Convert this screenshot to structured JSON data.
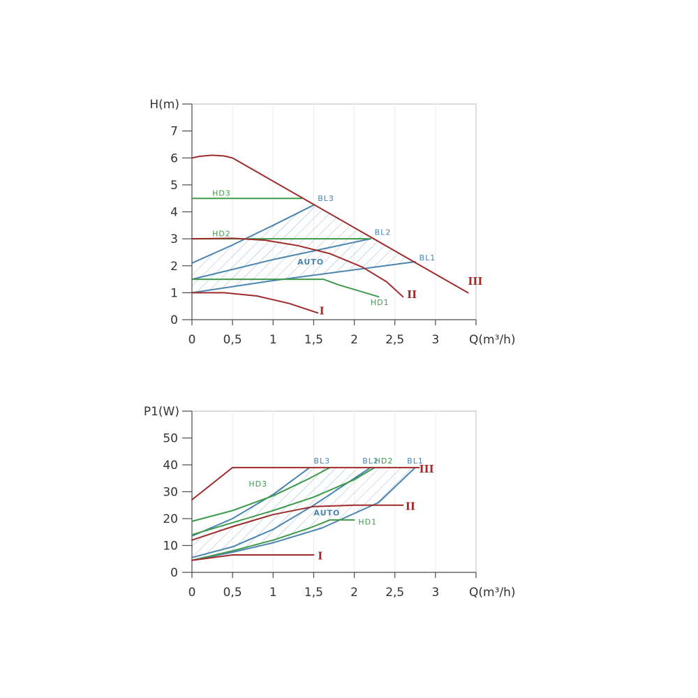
{
  "colors": {
    "red": "#9e2a2a",
    "blue": "#4a84b0",
    "green": "#3e9a4a",
    "hatch": "#8fb0cc"
  },
  "chart_data": [
    {
      "type": "line",
      "xlabel": "Q(m³/h)",
      "ylabel": "H(m)",
      "xlim": [
        0,
        3.5
      ],
      "ylim": [
        0,
        8
      ],
      "x_ticks": [
        {
          "v": 0,
          "label": "0"
        },
        {
          "v": 0.5,
          "label": "0,5"
        },
        {
          "v": 1,
          "label": "1"
        },
        {
          "v": 1.5,
          "label": "1,5"
        },
        {
          "v": 2,
          "label": "2"
        },
        {
          "v": 2.5,
          "label": "2,5"
        },
        {
          "v": 3,
          "label": "3"
        }
      ],
      "y_ticks": [
        {
          "v": 0,
          "label": "0"
        },
        {
          "v": 1,
          "label": "1"
        },
        {
          "v": 2,
          "label": "2"
        },
        {
          "v": 3,
          "label": "3"
        },
        {
          "v": 4,
          "label": "4"
        },
        {
          "v": 5,
          "label": "5"
        },
        {
          "v": 6,
          "label": "6"
        },
        {
          "v": 7,
          "label": "7"
        }
      ],
      "auto_region": {
        "label": "AUTO",
        "pos": [
          1.3,
          2.05
        ],
        "polygon": [
          [
            0,
            1.5
          ],
          [
            0,
            2.1
          ],
          [
            1.5,
            4.25
          ],
          [
            2.2,
            3.0
          ],
          [
            2.75,
            2.15
          ],
          [
            0,
            1.0
          ]
        ]
      },
      "series": [
        {
          "name": "III",
          "color": "red",
          "points": [
            [
              0,
              6.0
            ],
            [
              0.1,
              6.06
            ],
            [
              0.25,
              6.1
            ],
            [
              0.4,
              6.07
            ],
            [
              0.5,
              6.0
            ],
            [
              3.4,
              1.0
            ]
          ],
          "label_pos": [
            3.4,
            1.3
          ]
        },
        {
          "name": "II",
          "color": "red",
          "points": [
            [
              0,
              3.0
            ],
            [
              0.5,
              3.02
            ],
            [
              0.9,
              2.95
            ],
            [
              1.3,
              2.75
            ],
            [
              1.7,
              2.45
            ],
            [
              2.1,
              1.95
            ],
            [
              2.4,
              1.4
            ],
            [
              2.6,
              0.85
            ]
          ],
          "label_pos": [
            2.65,
            0.8
          ]
        },
        {
          "name": "I",
          "color": "red",
          "points": [
            [
              0,
              1.0
            ],
            [
              0.4,
              1.0
            ],
            [
              0.8,
              0.88
            ],
            [
              1.2,
              0.6
            ],
            [
              1.55,
              0.25
            ]
          ],
          "label_pos": [
            1.57,
            0.2
          ]
        },
        {
          "name": "HD3",
          "color": "green",
          "points": [
            [
              0,
              4.5
            ],
            [
              1.35,
              4.5
            ]
          ],
          "label_pos": [
            0.25,
            4.6
          ]
        },
        {
          "name": "HD2",
          "color": "green",
          "points": [
            [
              0,
              3.0
            ],
            [
              2.2,
              3.0
            ]
          ],
          "label_pos": [
            0.25,
            3.1
          ]
        },
        {
          "name": "HD1",
          "color": "green",
          "points": [
            [
              0,
              1.5
            ],
            [
              1.62,
              1.5
            ],
            [
              1.8,
              1.3
            ],
            [
              2.3,
              0.85
            ]
          ],
          "label_pos": [
            2.2,
            0.55
          ]
        },
        {
          "name": "BL3",
          "color": "blue",
          "points": [
            [
              0,
              2.1
            ],
            [
              0.5,
              2.77
            ],
            [
              1.0,
              3.5
            ],
            [
              1.5,
              4.25
            ]
          ],
          "label_pos": [
            1.55,
            4.4
          ]
        },
        {
          "name": "BL2",
          "color": "blue",
          "points": [
            [
              0,
              1.5
            ],
            [
              1.0,
              2.23
            ],
            [
              2.2,
              3.0
            ]
          ],
          "label_pos": [
            2.25,
            3.15
          ]
        },
        {
          "name": "BL1",
          "color": "blue",
          "points": [
            [
              0,
              1.0
            ],
            [
              1.0,
              1.45
            ],
            [
              2.75,
              2.15
            ]
          ],
          "label_pos": [
            2.8,
            2.2
          ]
        }
      ]
    },
    {
      "type": "line",
      "xlabel": "Q(m³/h)",
      "ylabel": "P1(W)",
      "xlim": [
        0,
        3.5
      ],
      "ylim": [
        0,
        60
      ],
      "x_ticks": [
        {
          "v": 0,
          "label": "0"
        },
        {
          "v": 0.5,
          "label": "0,5"
        },
        {
          "v": 1,
          "label": "1"
        },
        {
          "v": 1.5,
          "label": "1,5"
        },
        {
          "v": 2,
          "label": "2"
        },
        {
          "v": 2.5,
          "label": "2,5"
        },
        {
          "v": 3,
          "label": "3"
        }
      ],
      "y_ticks": [
        {
          "v": 0,
          "label": "0"
        },
        {
          "v": 10,
          "label": "10"
        },
        {
          "v": 20,
          "label": "20"
        },
        {
          "v": 30,
          "label": "30"
        },
        {
          "v": 40,
          "label": "40"
        },
        {
          "v": 50,
          "label": "50"
        }
      ],
      "auto_region": {
        "label": "AUTO",
        "pos": [
          1.5,
          21.2
        ],
        "polygon": [
          [
            0,
            13
          ],
          [
            0.5,
            20
          ],
          [
            1.45,
            39
          ],
          [
            2.75,
            39
          ],
          [
            2.3,
            26
          ],
          [
            1.6,
            16
          ],
          [
            0.8,
            9
          ],
          [
            0,
            5
          ]
        ]
      },
      "series": [
        {
          "name": "III",
          "color": "red",
          "points": [
            [
              0,
              27
            ],
            [
              0.5,
              39
            ],
            [
              2.8,
              39
            ]
          ],
          "label_pos": [
            2.8,
            37.2
          ]
        },
        {
          "name": "II",
          "color": "red",
          "points": [
            [
              0,
              12
            ],
            [
              0.5,
              17
            ],
            [
              1.0,
              21.5
            ],
            [
              1.5,
              24.5
            ],
            [
              2.0,
              25
            ],
            [
              2.6,
              25
            ]
          ],
          "label_pos": [
            2.63,
            23.2
          ]
        },
        {
          "name": "I",
          "color": "red",
          "points": [
            [
              0,
              4.5
            ],
            [
              0.5,
              6.5
            ],
            [
              1.5,
              6.5
            ]
          ],
          "label_pos": [
            1.55,
            4.8
          ]
        },
        {
          "name": "HD3",
          "color": "green",
          "points": [
            [
              0,
              19
            ],
            [
              0.5,
              23
            ],
            [
              1.0,
              28.5
            ],
            [
              1.45,
              35
            ],
            [
              1.7,
              39
            ]
          ],
          "label_pos": [
            0.7,
            32
          ]
        },
        {
          "name": "HD2",
          "color": "green",
          "points": [
            [
              0,
              14
            ],
            [
              0.5,
              18.5
            ],
            [
              1.0,
              23
            ],
            [
              1.5,
              28
            ],
            [
              2.0,
              34.5
            ],
            [
              2.25,
              39
            ]
          ],
          "label_pos": [
            2.25,
            40.5
          ]
        },
        {
          "name": "HD1",
          "color": "green",
          "points": [
            [
              0,
              4.5
            ],
            [
              0.5,
              8
            ],
            [
              1.0,
              12
            ],
            [
              1.45,
              16.5
            ],
            [
              1.7,
              19.5
            ],
            [
              2.0,
              19.5
            ]
          ],
          "label_pos": [
            2.05,
            17.8
          ]
        },
        {
          "name": "BL3",
          "color": "blue",
          "points": [
            [
              0,
              13.5
            ],
            [
              0.5,
              20
            ],
            [
              1.0,
              29
            ],
            [
              1.45,
              39
            ]
          ],
          "label_pos": [
            1.5,
            40.5
          ]
        },
        {
          "name": "BL2",
          "color": "blue",
          "points": [
            [
              0,
              5.5
            ],
            [
              0.5,
              9.5
            ],
            [
              1.0,
              16
            ],
            [
              1.5,
              25
            ],
            [
              2.2,
              39
            ]
          ],
          "label_pos": [
            2.1,
            40.5
          ]
        },
        {
          "name": "BL1",
          "color": "blue",
          "points": [
            [
              0,
              4.5
            ],
            [
              0.5,
              7.5
            ],
            [
              1.0,
              11
            ],
            [
              1.6,
              16.5
            ],
            [
              2.3,
              26
            ],
            [
              2.75,
              39
            ]
          ],
          "label_pos": [
            2.65,
            40.5
          ]
        }
      ]
    }
  ]
}
